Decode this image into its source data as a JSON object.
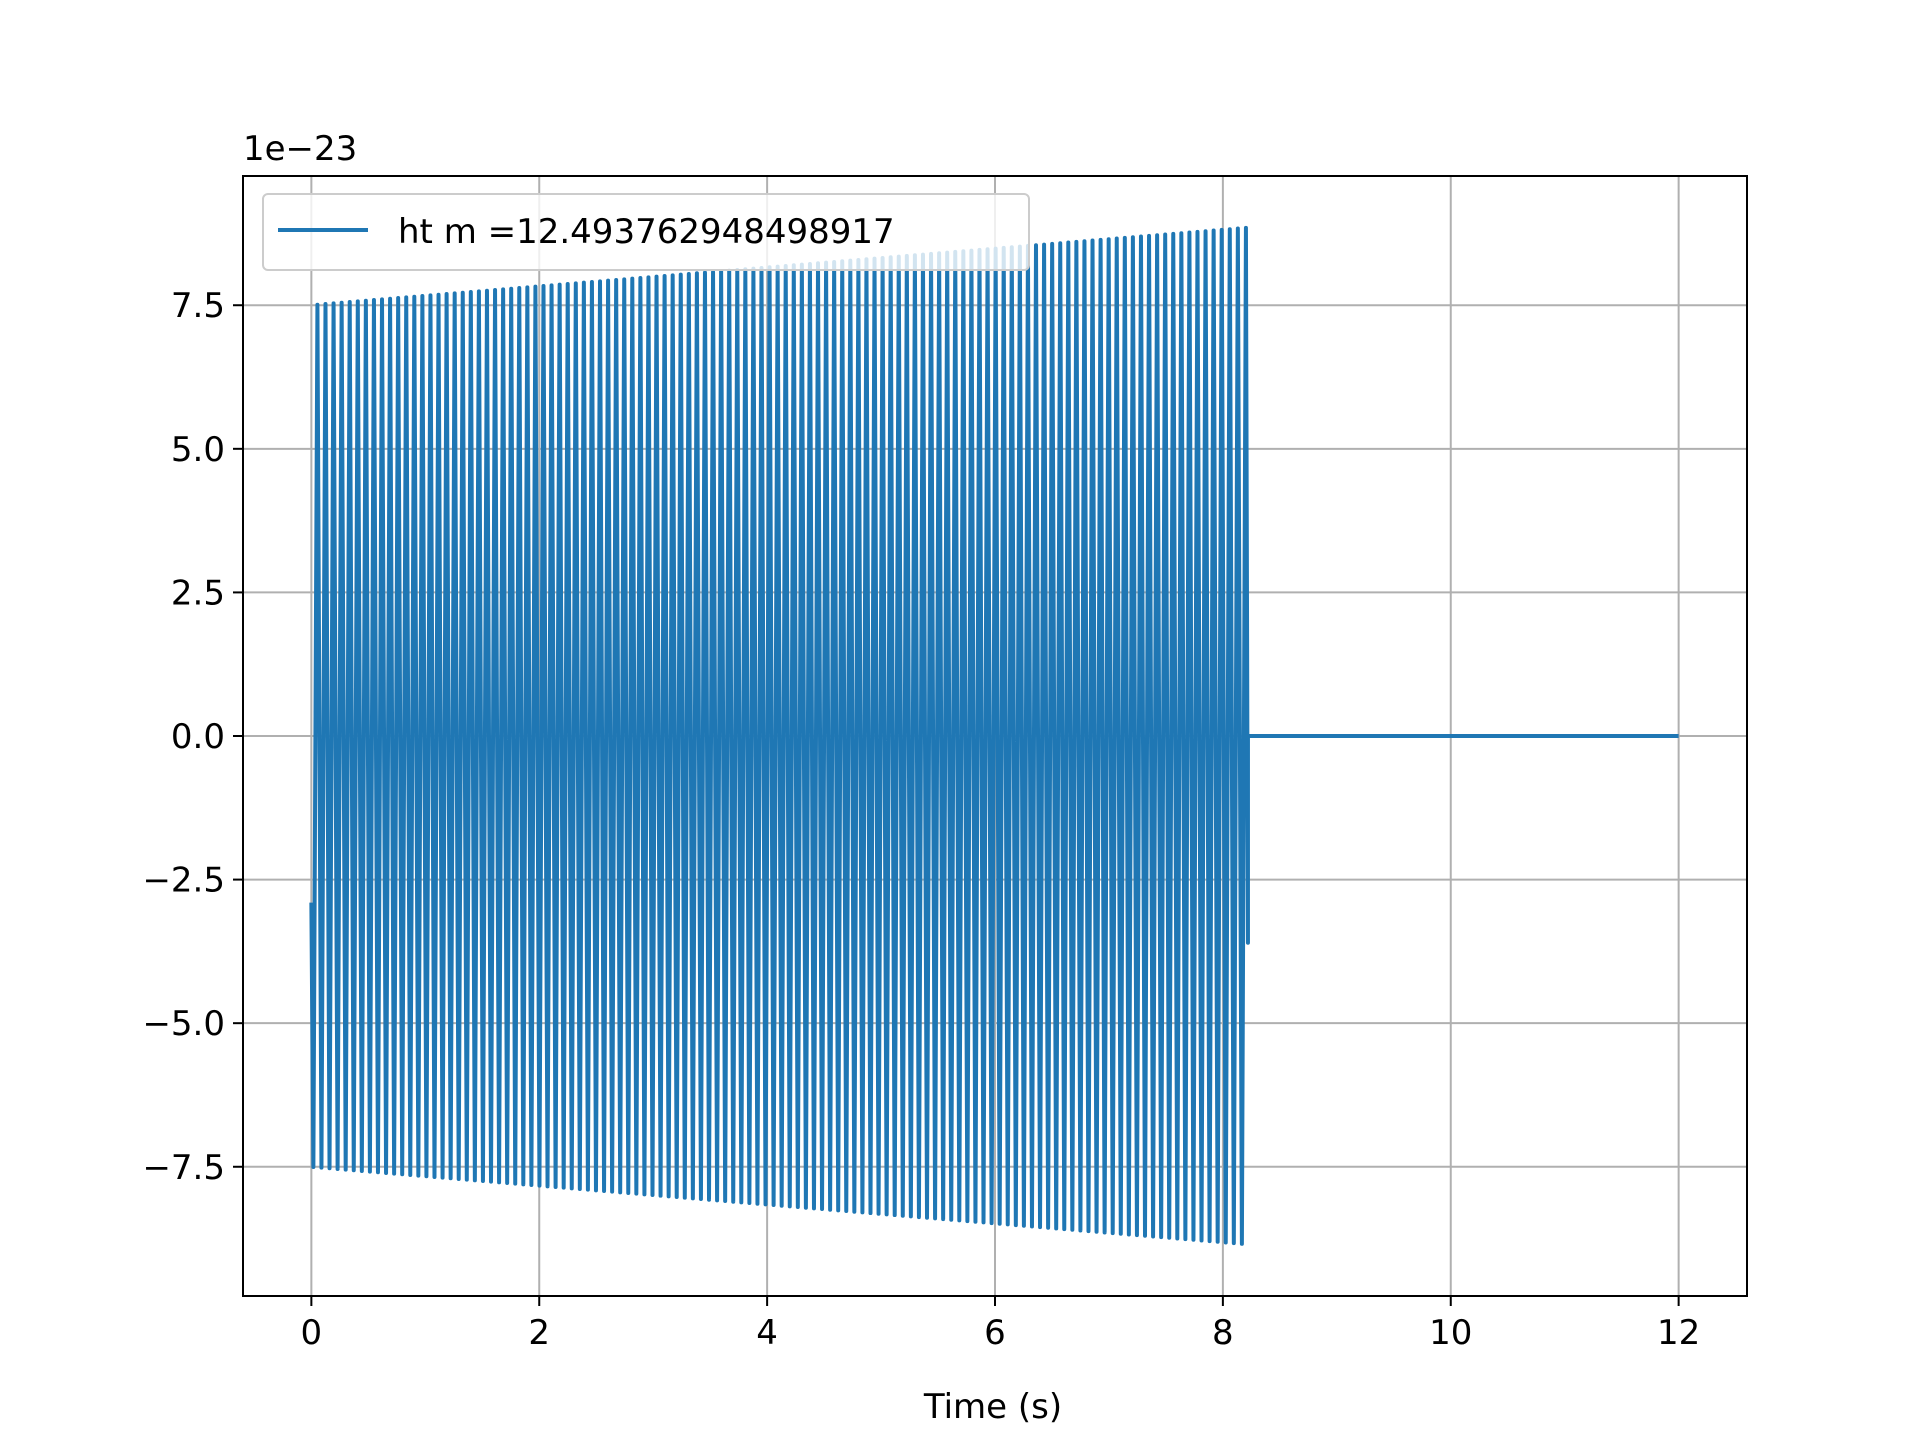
{
  "chart_data": {
    "type": "line",
    "title": "",
    "xlabel": "Time (s)",
    "ylabel": "",
    "offset_label": "1e−23",
    "xlim": [
      -0.6,
      12.6
    ],
    "ylim": [
      -9.75,
      9.75
    ],
    "grid": true,
    "legend": {
      "position": "top-left",
      "entries": [
        "ht m =12.493762948498917"
      ]
    },
    "x_ticks": [
      0,
      2,
      4,
      6,
      8,
      10,
      12
    ],
    "x_tick_labels": [
      "0",
      "2",
      "4",
      "6",
      "8",
      "10",
      "12"
    ],
    "y_ticks": [
      -7.5,
      -5.0,
      -2.5,
      0.0,
      2.5,
      5.0,
      7.5
    ],
    "y_tick_labels": [
      "−7.5",
      "−5.0",
      "−2.5",
      "0.0",
      "2.5",
      "5.0",
      "7.5"
    ],
    "series": [
      {
        "name": "ht m =12.493762948498917",
        "color": "#1f77b4",
        "x_start": 0,
        "x_end": 12,
        "signal_end": 8.22,
        "amplitude_start": 7.5,
        "amplitude_end": 8.85,
        "cycles": 116,
        "initial_value": -2.9,
        "final_value": -3.6,
        "tail_value": 0.0
      }
    ]
  }
}
